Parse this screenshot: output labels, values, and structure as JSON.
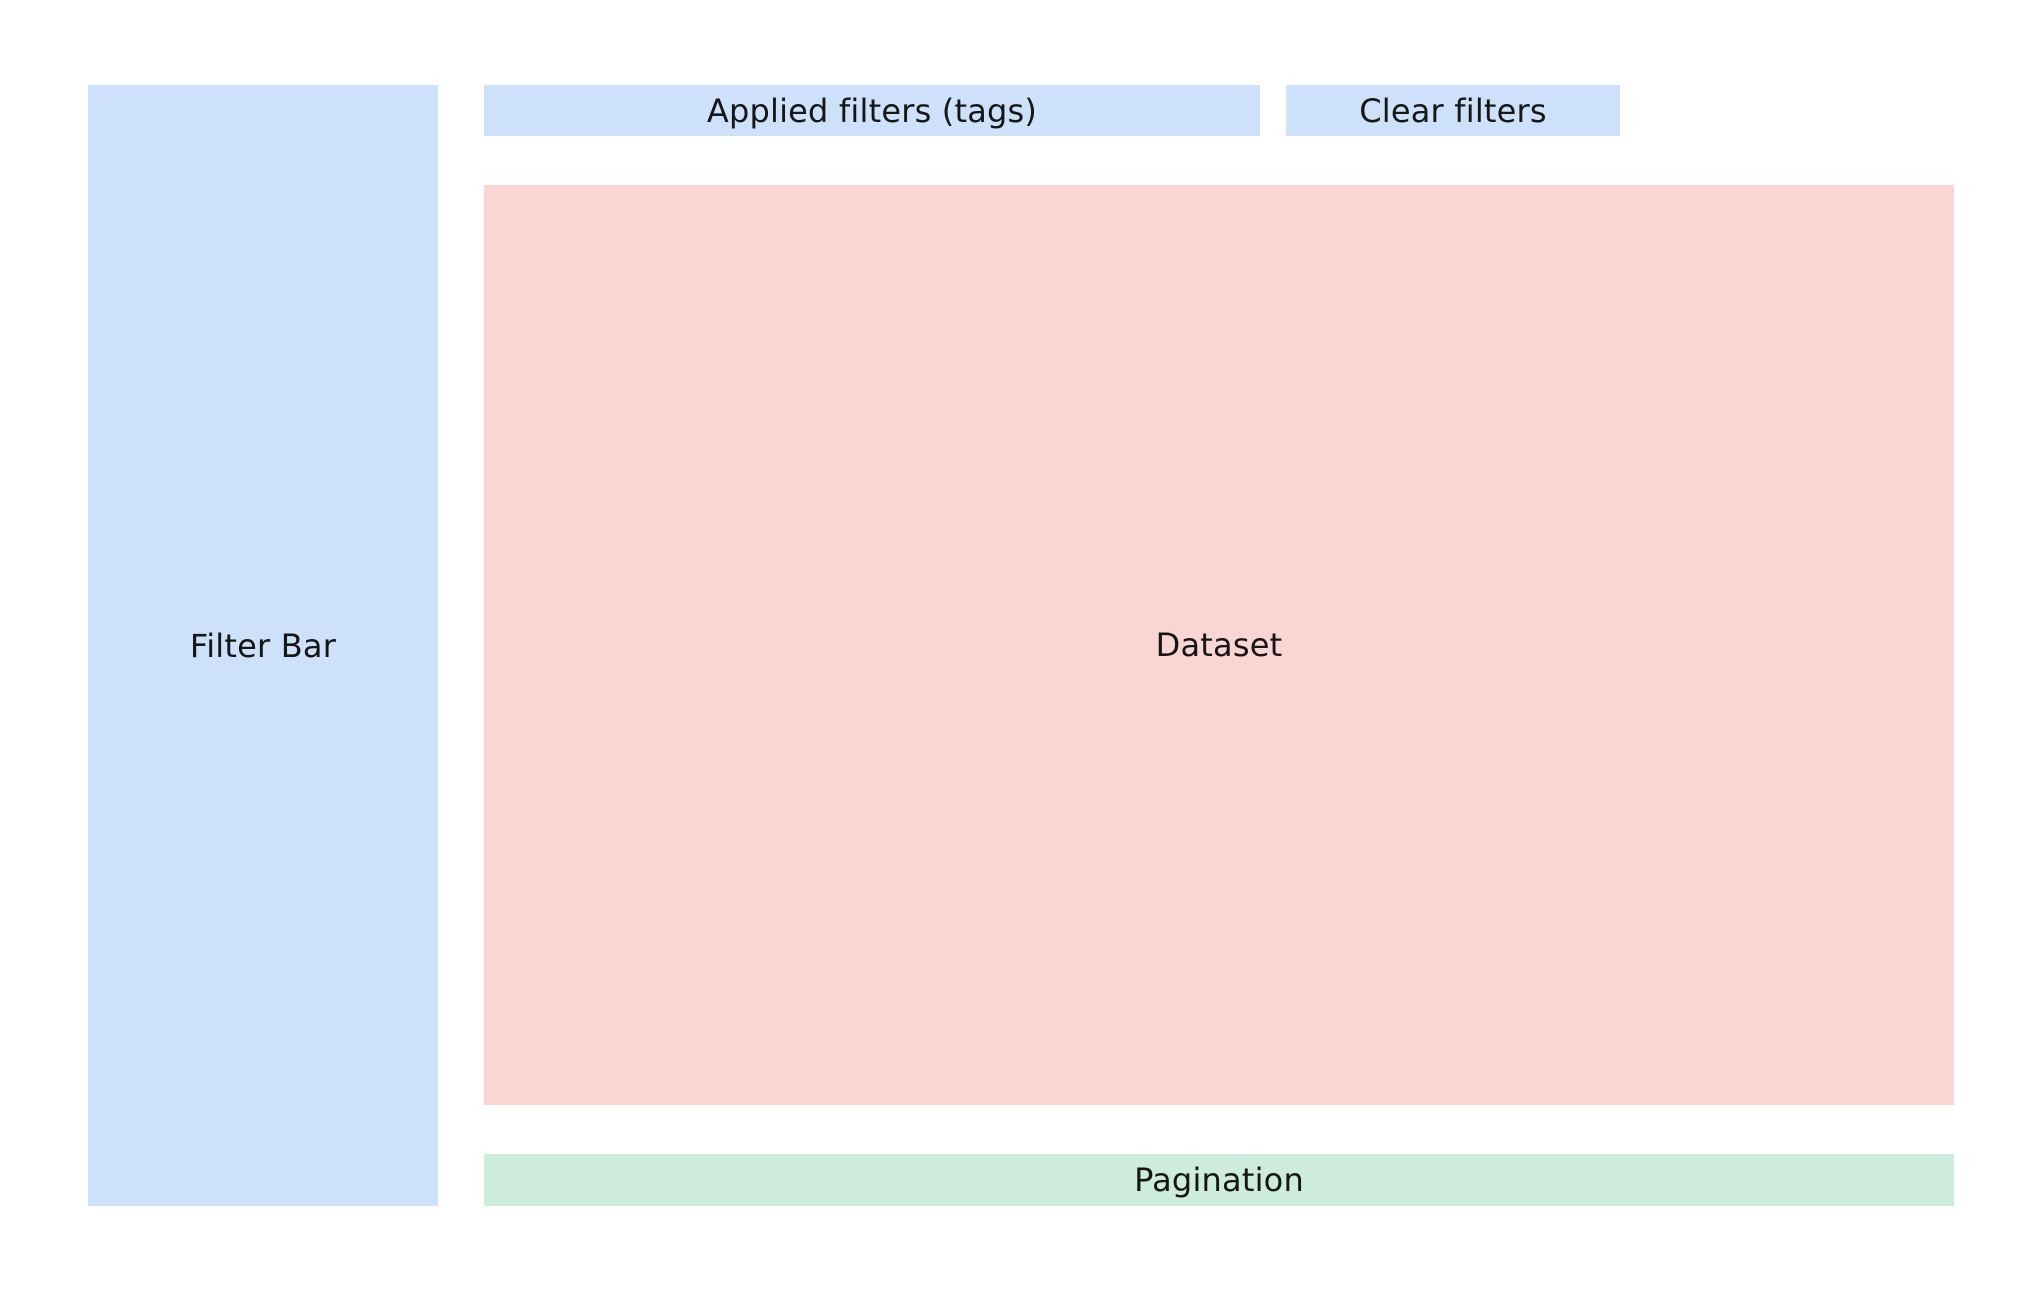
{
  "layout": {
    "filter_bar": {
      "label": "Filter Bar"
    },
    "applied_filters": {
      "label": "Applied filters (tags)"
    },
    "clear_filters": {
      "label": "Clear filters"
    },
    "dataset": {
      "label": "Dataset"
    },
    "pagination": {
      "label": "Pagination"
    }
  },
  "colors": {
    "filter_region": "#cde2fa",
    "dataset_region": "#f9d5d4",
    "pagination_region": "#ceecdb",
    "text": "#161616"
  }
}
